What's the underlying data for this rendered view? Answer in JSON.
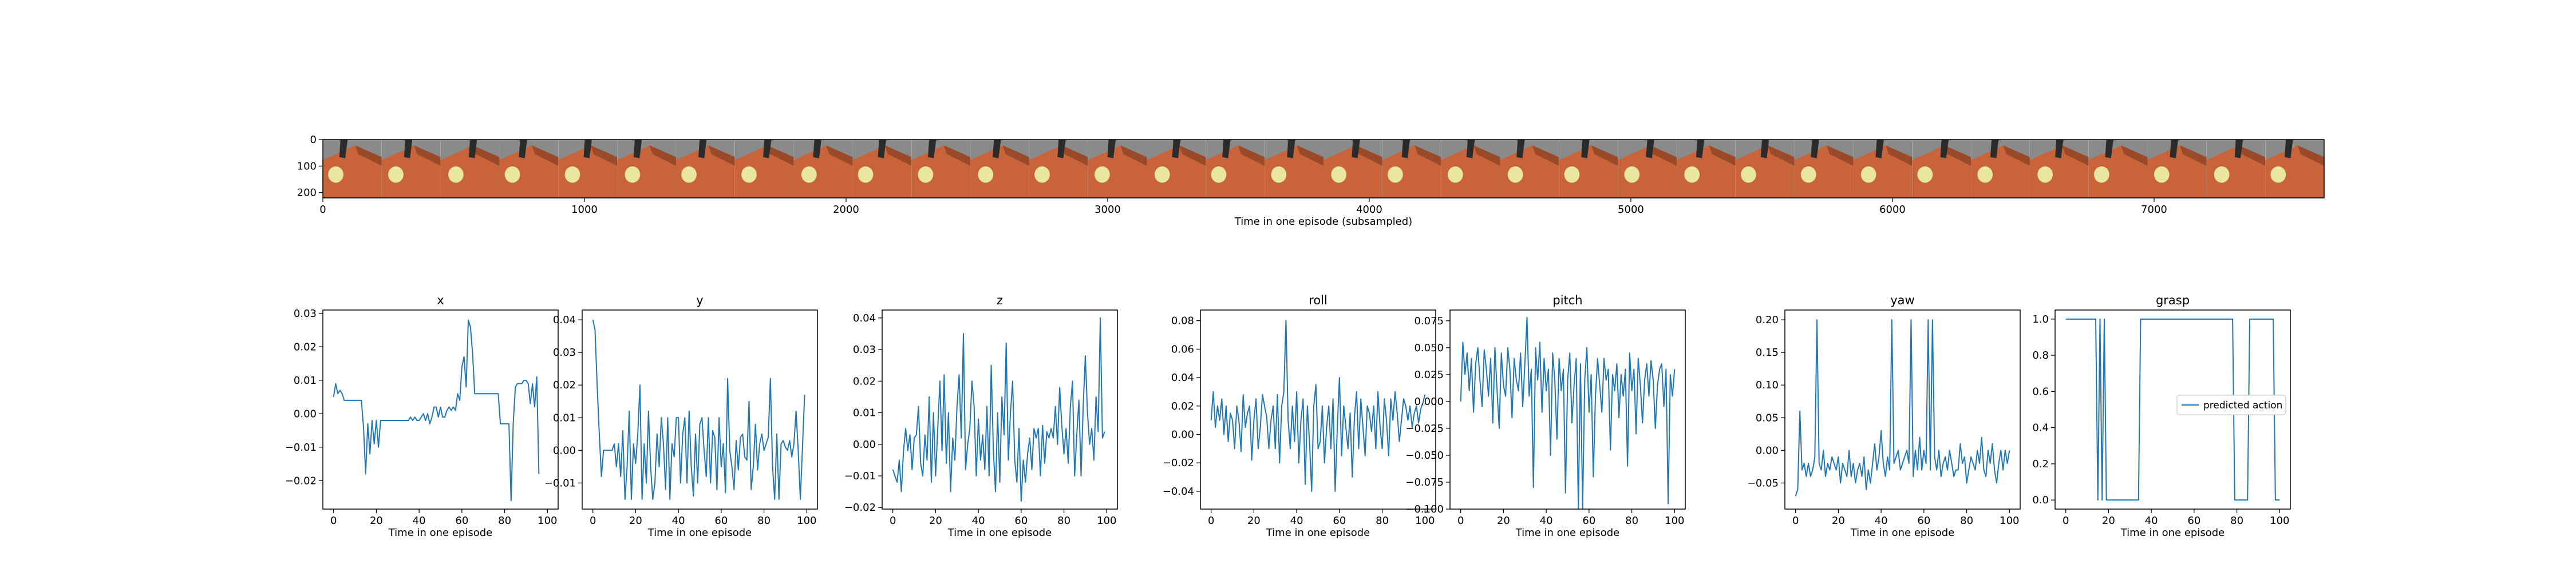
{
  "filmstrip": {
    "xlabel": "Time in one episode (subsampled)",
    "x_ticks": [
      0,
      1000,
      2000,
      3000,
      4000,
      5000,
      6000,
      7000
    ],
    "y_ticks": [
      0,
      100,
      200
    ],
    "xlim": [
      0,
      7650
    ],
    "ylim": [
      0,
      220
    ],
    "frame_count": 34,
    "frame_width": 225
  },
  "colors": {
    "line": "#1f77b4",
    "table": "#c9643a",
    "table_dark": "#9a4a28",
    "floor": "#8a8a8a",
    "object": "#e8e6a0",
    "gripper": "#2b2b2b"
  },
  "legend": {
    "label": "predicted action"
  },
  "chart_data": [
    {
      "type": "line",
      "title": "x",
      "xlabel": "Time in one episode",
      "ylabel": "",
      "xlim": [
        -5,
        105
      ],
      "ylim": [
        -0.0285,
        0.031
      ],
      "x_ticks": [
        0,
        20,
        40,
        60,
        80,
        100
      ],
      "y_ticks": [
        -0.02,
        -0.01,
        0.0,
        0.01,
        0.02,
        0.03
      ],
      "y_tick_labels": [
        "−0.02",
        "−0.01",
        "0.00",
        "0.01",
        "0.02",
        "0.03"
      ],
      "values": [
        0.005,
        0.009,
        0.006,
        0.007,
        0.006,
        0.004,
        0.004,
        0.004,
        0.004,
        0.004,
        0.004,
        0.004,
        0.004,
        0.004,
        -0.004,
        -0.018,
        -0.003,
        -0.012,
        -0.002,
        -0.009,
        -0.002,
        -0.01,
        -0.002,
        -0.002,
        -0.002,
        -0.002,
        -0.002,
        -0.002,
        -0.002,
        -0.002,
        -0.002,
        -0.002,
        -0.002,
        -0.002,
        -0.002,
        -0.002,
        -0.001,
        -0.002,
        -0.001,
        -0.002,
        -0.002,
        -0.001,
        0,
        -0.002,
        0,
        -0.003,
        -0.001,
        0.002,
        0.002,
        -0.001,
        0.002,
        -0.001,
        -0.001,
        0.001,
        0.002,
        0.001,
        0.002,
        0.001,
        0.006,
        0.004,
        0.014,
        0.017,
        0.008,
        0.028,
        0.026,
        0.018,
        0.006,
        0.006,
        0.006,
        0.006,
        0.006,
        0.006,
        0.006,
        0.006,
        0.006,
        0.006,
        0.006,
        0.006,
        -0.003,
        -0.003,
        -0.003,
        -0.003,
        -0.003,
        -0.026,
        -0.003,
        0.008,
        0.009,
        0.009,
        0.009,
        0.01,
        0.01,
        0.009,
        0.003,
        0.009,
        0.002,
        0.011,
        -0.018
      ]
    },
    {
      "type": "line",
      "title": "y",
      "xlabel": "Time in one episode",
      "ylabel": "",
      "xlim": [
        -5,
        105
      ],
      "ylim": [
        -0.018,
        0.043
      ],
      "x_ticks": [
        0,
        20,
        40,
        60,
        80,
        100
      ],
      "y_ticks": [
        -0.01,
        0.0,
        0.01,
        0.02,
        0.03,
        0.04
      ],
      "y_tick_labels": [
        "−0.01",
        "0.00",
        "0.01",
        "0.02",
        "0.03",
        "0.04"
      ],
      "values": [
        0.04,
        0.037,
        0.02,
        0.005,
        -0.008,
        0,
        0,
        0,
        0,
        0,
        0.002,
        -0.005,
        0.002,
        -0.008,
        0.006,
        -0.015,
        -0.005,
        0.012,
        -0.015,
        0.002,
        -0.004,
        0.005,
        0.02,
        -0.015,
        0.002,
        -0.01,
        0.012,
        -0.005,
        -0.015,
        -0.01,
        0.005,
        -0.005,
        0.01,
        0.002,
        -0.012,
        0.01,
        -0.015,
        0.002,
        -0.002,
        0.01,
        0.01,
        -0.01,
        0.005,
        0.01,
        -0.01,
        0.012,
        -0.005,
        -0.014,
        0.005,
        -0.01,
        0.008,
        0.01,
        0,
        -0.008,
        0.01,
        -0.01,
        0.006,
        0.004,
        -0.012,
        0.01,
        -0.005,
        0.002,
        -0.013,
        0.022,
        0,
        -0.005,
        -0.012,
        0.003,
        -0.006,
        0.004,
        0.005,
        -0.002,
        -0.003,
        0.015,
        -0.012,
        -0.005,
        0.008,
        -0.006,
        0.002,
        0.005,
        0,
        0.002,
        0.004,
        0.022,
        -0.005,
        -0.015,
        0.005,
        -0.015,
        0.002,
        0.003,
        0.001,
        0,
        0.003,
        -0.002,
        0.002,
        0.012,
        0,
        -0.015,
        0.001,
        0.017
      ]
    },
    {
      "type": "line",
      "title": "z",
      "xlabel": "Time in one episode",
      "ylabel": "",
      "xlim": [
        -5,
        105
      ],
      "ylim": [
        -0.0205,
        0.0425
      ],
      "x_ticks": [
        0,
        20,
        40,
        60,
        80,
        100
      ],
      "y_ticks": [
        -0.02,
        -0.01,
        0.0,
        0.01,
        0.02,
        0.03,
        0.04
      ],
      "y_tick_labels": [
        "−0.02",
        "−0.01",
        "0.00",
        "0.01",
        "0.02",
        "0.03",
        "0.04"
      ],
      "values": [
        -0.008,
        -0.01,
        -0.012,
        -0.005,
        -0.015,
        -0.002,
        0.005,
        -0.002,
        0.003,
        -0.008,
        0.002,
        0.003,
        0.012,
        -0.006,
        -0.01,
        0.003,
        -0.005,
        0.015,
        -0.012,
        0.01,
        -0.01,
        0.005,
        0.02,
        -0.002,
        0.022,
        -0.006,
        0.01,
        -0.015,
        0.002,
        -0.005,
        0.012,
        0.022,
        0.002,
        0.035,
        -0.008,
        0,
        0.005,
        0.02,
        0.012,
        -0.01,
        0.008,
        -0.005,
        0.003,
        -0.008,
        0.012,
        -0.01,
        0.025,
        -0.002,
        -0.015,
        0.01,
        -0.012,
        0.015,
        0.003,
        0.032,
        -0.005,
        0.01,
        0.02,
        -0.005,
        -0.012,
        0.005,
        -0.018,
        -0.005,
        -0.012,
        -0.003,
        0.002,
        -0.008,
        0.005,
        0.002,
        0.005,
        -0.01,
        0.006,
        -0.006,
        0.004,
        0.002,
        0.005,
        0.002,
        0.012,
        0,
        0.018,
        0.006,
        -0.003,
        0.005,
        -0.006,
        0.012,
        0.02,
        -0.01,
        0.003,
        0.014,
        -0.01,
        0.012,
        0.028,
        0.01,
        0,
        0.005,
        -0.005,
        0.015,
        0.004,
        0.04,
        0.002,
        0.004
      ]
    },
    {
      "type": "line",
      "title": "roll",
      "xlabel": "Time in one episode",
      "ylabel": "",
      "xlim": [
        -5,
        105
      ],
      "ylim": [
        -0.0525,
        0.0875
      ],
      "x_ticks": [
        0,
        20,
        40,
        60,
        80,
        100
      ],
      "y_ticks": [
        -0.04,
        -0.02,
        0.0,
        0.02,
        0.04,
        0.06,
        0.08
      ],
      "y_tick_labels": [
        "−0.04",
        "−0.02",
        "0.00",
        "0.02",
        "0.04",
        "0.06",
        "0.08"
      ],
      "values": [
        0.01,
        0.03,
        0.005,
        0.02,
        0.01,
        0.025,
        0,
        0.02,
        -0.005,
        0.015,
        0.01,
        -0.01,
        0.02,
        0.01,
        -0.012,
        0.028,
        0.005,
        0.015,
        0.02,
        -0.018,
        0.01,
        0.025,
        -0.01,
        0.005,
        0.028,
        0.02,
        0.012,
        -0.01,
        0.01,
        0.02,
        -0.01,
        0.028,
        -0.02,
        0.02,
        0.03,
        0.08,
        0.01,
        -0.01,
        0.02,
        -0.005,
        0.03,
        -0.02,
        0.01,
        0.025,
        -0.035,
        0.02,
        -0.005,
        -0.04,
        0.02,
        0.035,
        -0.01,
        -0.005,
        0.02,
        -0.02,
        0.005,
        0.02,
        -0.01,
        0.025,
        -0.04,
        0.005,
        0.04,
        -0.015,
        0.02,
        0.005,
        -0.01,
        0.015,
        -0.03,
        0.012,
        0.03,
        -0.01,
        0.025,
        0.005,
        -0.015,
        0.02,
        0.015,
        0.002,
        0.02,
        -0.01,
        0.03,
        0.005,
        -0.01,
        0.025,
        0.01,
        -0.015,
        0.025,
        0.01,
        0.03,
        0.015,
        -0.005,
        0.01,
        0.025,
        0.02,
        0.01,
        0.02,
        0.005,
        0.015,
        0.02,
        0.008,
        0.018,
        0.022,
        0.028
      ]
    },
    {
      "type": "line",
      "title": "pitch",
      "xlabel": "Time in one episode",
      "ylabel": "",
      "xlim": [
        -5,
        105
      ],
      "ylim": [
        -0.1,
        0.085
      ],
      "x_ticks": [
        0,
        20,
        40,
        60,
        80,
        100
      ],
      "y_ticks": [
        -0.1,
        -0.075,
        -0.05,
        -0.025,
        0.0,
        0.025,
        0.05,
        0.075
      ],
      "y_tick_labels": [
        "−0.100",
        "−0.075",
        "−0.050",
        "−0.025",
        "0.000",
        "0.025",
        "0.050",
        "0.075"
      ],
      "values": [
        0,
        0.055,
        0.025,
        0.045,
        0.01,
        0.04,
        -0.01,
        0.035,
        0.05,
        0.02,
        -0.005,
        0.048,
        0.03,
        0.005,
        0.04,
        -0.02,
        0.05,
        0.01,
        -0.025,
        0.045,
        0.015,
        0.005,
        0.05,
        0.03,
        -0.015,
        0.04,
        0.02,
        0.01,
        0.045,
        -0.005,
        0.035,
        0.078,
        0.005,
        0.03,
        -0.08,
        0.05,
        0.02,
        0.055,
        -0.01,
        0.04,
        0.01,
        0.03,
        -0.05,
        0.045,
        0.02,
        -0.035,
        0.04,
        0.01,
        0.03,
        -0.085,
        0.02,
        0.045,
        -0.02,
        0.015,
        0.04,
        -0.1,
        0.035,
        -0.1,
        0.02,
        0.05,
        -0.01,
        0.025,
        -0.07,
        0.005,
        0.04,
        0.015,
        -0.01,
        0.04,
        0.02,
        0.03,
        -0.045,
        0.025,
        0.01,
        0.035,
        -0.015,
        0.025,
        0.005,
        0.03,
        -0.06,
        0.045,
        0.01,
        0.03,
        -0.03,
        0.04,
        0.015,
        -0.02,
        0.02,
        0.035,
        0.005,
        0.038,
        0.02,
        -0.025,
        0.015,
        0.03,
        0.035,
        -0.005,
        0.03,
        -0.095,
        0.025,
        0.005,
        0.03
      ]
    },
    {
      "type": "line",
      "title": "yaw",
      "xlabel": "Time in one episode",
      "ylabel": "",
      "xlim": [
        -5,
        105
      ],
      "ylim": [
        -0.09,
        0.215
      ],
      "x_ticks": [
        0,
        20,
        40,
        60,
        80,
        100
      ],
      "y_ticks": [
        -0.05,
        0.0,
        0.05,
        0.1,
        0.15,
        0.2
      ],
      "y_tick_labels": [
        "−0.05",
        "0.00",
        "0.05",
        "0.10",
        "0.15",
        "0.20"
      ],
      "values": [
        -0.07,
        -0.06,
        0.06,
        -0.03,
        -0.02,
        -0.04,
        -0.02,
        -0.04,
        -0.03,
        -0.01,
        0.2,
        -0.02,
        -0.03,
        0,
        -0.04,
        -0.02,
        -0.03,
        -0.01,
        -0.02,
        -0.03,
        -0.01,
        -0.05,
        -0.02,
        -0.03,
        -0.04,
        0,
        -0.04,
        -0.02,
        -0.05,
        -0.03,
        -0.02,
        -0.04,
        -0.01,
        -0.06,
        -0.03,
        -0.05,
        -0.02,
        0.01,
        -0.03,
        -0.01,
        0.03,
        -0.02,
        -0.04,
        -0.01,
        -0.03,
        0.2,
        -0.02,
        -0.01,
        0,
        -0.03,
        -0.02,
        -0.01,
        0,
        -0.02,
        0.2,
        -0.04,
        0,
        -0.03,
        0.02,
        -0.03,
        0,
        -0.02,
        0.2,
        -0.03,
        0.2,
        -0.01,
        -0.03,
        0,
        -0.04,
        -0.02,
        -0.01,
        -0.03,
        0,
        -0.02,
        -0.04,
        -0.03,
        -0.03,
        0.01,
        -0.02,
        -0.01,
        -0.05,
        -0.03,
        -0.01,
        -0.02,
        -0.03,
        0,
        -0.02,
        0.02,
        -0.03,
        -0.04,
        0,
        -0.02,
        0.01,
        -0.03,
        -0.05,
        -0.02,
        0,
        -0.03,
        0,
        -0.02,
        0
      ]
    },
    {
      "type": "line",
      "title": "grasp",
      "xlabel": "Time in one episode",
      "ylabel": "",
      "xlim": [
        -5,
        105
      ],
      "ylim": [
        -0.05,
        1.05
      ],
      "x_ticks": [
        0,
        20,
        40,
        60,
        80,
        100
      ],
      "y_ticks": [
        0.0,
        0.2,
        0.4,
        0.6,
        0.8,
        1.0
      ],
      "y_tick_labels": [
        "0.0",
        "0.2",
        "0.4",
        "0.6",
        "0.8",
        "1.0"
      ],
      "legend": "predicted action",
      "values": [
        1,
        1,
        1,
        1,
        1,
        1,
        1,
        1,
        1,
        1,
        1,
        1,
        1,
        1,
        1,
        0,
        1,
        0,
        1,
        0,
        0,
        0,
        0,
        0,
        0,
        0,
        0,
        0,
        0,
        0,
        0,
        0,
        0,
        0,
        0,
        1,
        1,
        1,
        1,
        1,
        1,
        1,
        1,
        1,
        1,
        1,
        1,
        1,
        1,
        1,
        1,
        1,
        1,
        1,
        1,
        1,
        1,
        1,
        1,
        1,
        1,
        1,
        1,
        1,
        1,
        1,
        1,
        1,
        1,
        1,
        1,
        1,
        1,
        1,
        1,
        1,
        1,
        1,
        1,
        0,
        0,
        0,
        0,
        0,
        0,
        0,
        1,
        1,
        1,
        1,
        1,
        1,
        1,
        1,
        1,
        1,
        1,
        1,
        0,
        0,
        0
      ]
    }
  ]
}
